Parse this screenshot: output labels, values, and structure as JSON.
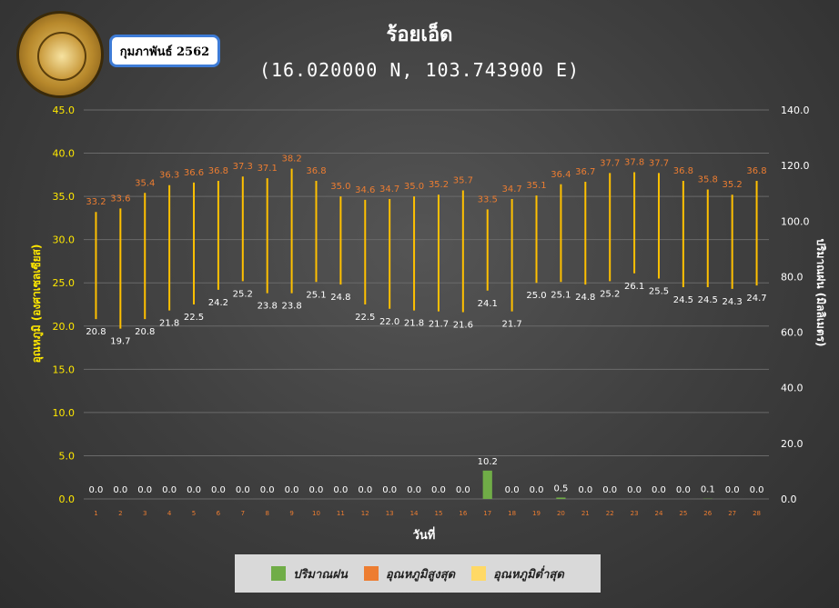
{
  "title": "ร้อยเอ็ด",
  "subtitle": "(16.020000 N, 103.743900 E)",
  "month_label": "กุมภาพันธ์ 2562",
  "colors": {
    "rain": "#70ad47",
    "tmax": "#ed7d31",
    "tmin": "#ffd966",
    "bar_line": "#ffc000",
    "left_axis": "#ffe800",
    "grid": "#6a6a6a"
  },
  "chart_data": {
    "type": "bar",
    "xlabel": "วันที่",
    "ylabel_left": "อุณหภูมิ (องศาเซลเซียส)",
    "ylabel_right": "ปริมาณฝน (มิลลิเมตร)",
    "ylim_left": [
      0,
      45
    ],
    "yticks_left": [
      "0.0",
      "5.0",
      "10.0",
      "15.0",
      "20.0",
      "25.0",
      "30.0",
      "35.0",
      "40.0",
      "45.0"
    ],
    "ylim_right": [
      0,
      140
    ],
    "yticks_right": [
      "0.0",
      "20.0",
      "40.0",
      "60.0",
      "80.0",
      "100.0",
      "120.0",
      "140.0"
    ],
    "grid": true,
    "legend_position": "bottom",
    "categories": [
      "1",
      "2",
      "3",
      "4",
      "5",
      "6",
      "7",
      "8",
      "9",
      "10",
      "11",
      "12",
      "13",
      "14",
      "15",
      "16",
      "17",
      "18",
      "19",
      "20",
      "21",
      "22",
      "23",
      "24",
      "25",
      "26",
      "27",
      "28"
    ],
    "series": [
      {
        "name": "ปริมาณฝน",
        "axis": "right",
        "values": [
          0.0,
          0.0,
          0.0,
          0.0,
          0.0,
          0.0,
          0.0,
          0.0,
          0.0,
          0.0,
          0.0,
          0.0,
          0.0,
          0.0,
          0.0,
          0.0,
          10.2,
          0.0,
          0.0,
          0.5,
          0.0,
          0.0,
          0.0,
          0.0,
          0.0,
          0.1,
          0.0,
          0.0
        ]
      },
      {
        "name": "อุณหภูมิสูงสุด",
        "axis": "left",
        "values": [
          33.2,
          33.6,
          35.4,
          36.3,
          36.6,
          36.8,
          37.3,
          37.1,
          38.2,
          36.8,
          35.0,
          34.6,
          34.7,
          35.0,
          35.2,
          35.7,
          33.5,
          34.7,
          35.1,
          36.4,
          36.7,
          37.7,
          37.8,
          37.7,
          36.8,
          35.8,
          35.2,
          36.8
        ]
      },
      {
        "name": "อุณหภูมิต่ำสุด",
        "axis": "left",
        "values": [
          20.8,
          19.7,
          20.8,
          21.8,
          22.5,
          24.2,
          25.2,
          23.8,
          23.8,
          25.1,
          24.8,
          22.5,
          22.0,
          21.8,
          21.7,
          21.6,
          24.1,
          21.7,
          25.0,
          25.1,
          24.8,
          25.2,
          26.1,
          25.5,
          24.5,
          24.5,
          24.3,
          24.7
        ]
      }
    ]
  }
}
